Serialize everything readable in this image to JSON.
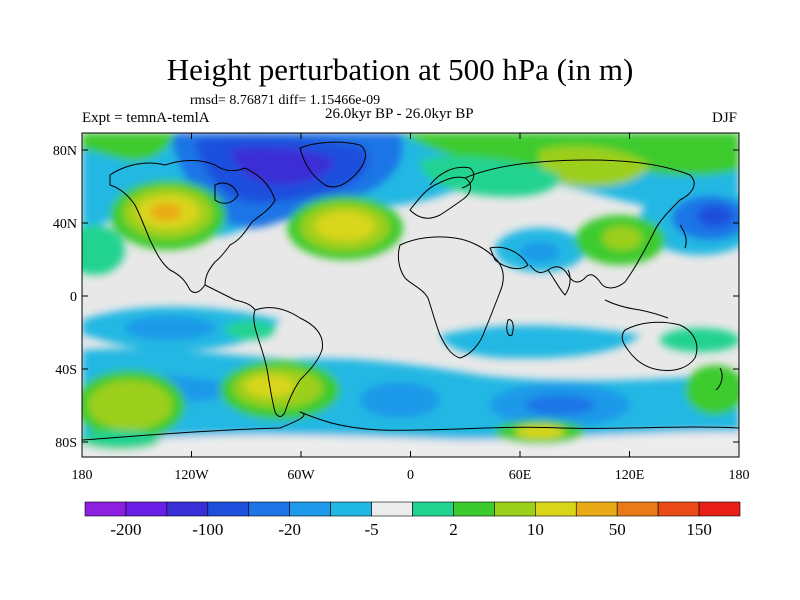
{
  "title": "Height perturbation at 500 hPa (in m)",
  "stats": "rmsd= 8.76871 diff= 1.15466e-09",
  "expt": "Expt = temnA-temlA",
  "period": "26.0kyr BP - 26.0kyr BP",
  "season": "DJF",
  "map": {
    "lat_ticks": [
      "80N",
      "40N",
      "0",
      "40S",
      "80S"
    ],
    "lon_ticks": [
      "180",
      "120W",
      "60W",
      "0",
      "60E",
      "120E",
      "180"
    ]
  },
  "colorbar": {
    "labels": [
      "-200",
      "-100",
      "-20",
      "-5",
      "2",
      "10",
      "50",
      "150"
    ],
    "colors": [
      "#8c1fe0",
      "#6a1fe6",
      "#3a2fd6",
      "#1f4fdd",
      "#1f74e6",
      "#1f99e9",
      "#20b8e3",
      "#ececec",
      "#20d390",
      "#3ccb2e",
      "#9ccf1a",
      "#d9d61a",
      "#e9aa18",
      "#e87a17",
      "#e94a17",
      "#e81f17"
    ]
  },
  "colors": {
    "background": "#e6e6e6",
    "ocean_fill": "#e6e6e6",
    "coastline": "#000000"
  }
}
